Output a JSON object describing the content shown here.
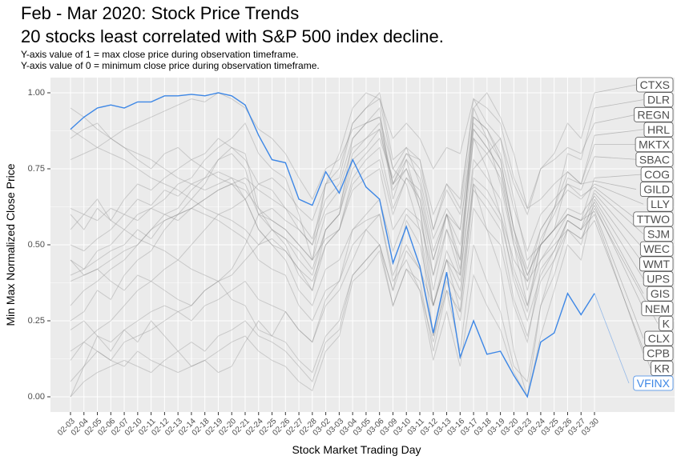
{
  "chart_data": {
    "type": "line",
    "title": "Feb - Mar 2020: Stock Price Trends",
    "title_line2": "20 stocks least correlated with S&P 500 index decline.",
    "subtitle_line1": "Y-axis value of 1 = max close price during observation timeframe.",
    "subtitle_line2": "Y-axis value of 0 = minimum close price during observation timeframe.",
    "xlabel": "Stock Market Trading Day",
    "ylabel": "Min Max Normalized Close Price",
    "ylim": [
      -0.05,
      1.05
    ],
    "yticks": [
      0.0,
      0.25,
      0.5,
      0.75,
      1.0
    ],
    "ytick_labels": [
      "0.00",
      "0.25",
      "0.50",
      "0.75",
      "1.00"
    ],
    "grid": true,
    "colors": {
      "panel": "#ebebeb",
      "grid": "#ffffff",
      "highlight": "#3d87e6",
      "gray_line": "#7f7f7f",
      "label_text": "#4d4d4d"
    },
    "categories": [
      "02-03",
      "02-04",
      "02-05",
      "02-06",
      "02-07",
      "02-10",
      "02-11",
      "02-12",
      "02-13",
      "02-14",
      "02-18",
      "02-19",
      "02-20",
      "02-21",
      "02-24",
      "02-25",
      "02-26",
      "02-27",
      "02-28",
      "03-02",
      "03-03",
      "03-04",
      "03-05",
      "03-06",
      "03-09",
      "03-10",
      "03-11",
      "03-12",
      "03-13",
      "03-16",
      "03-17",
      "03-18",
      "03-19",
      "03-20",
      "03-23",
      "03-24",
      "03-25",
      "03-26",
      "03-27",
      "03-30"
    ],
    "highlight_series": {
      "name": "VFINX",
      "values": [
        0.88,
        0.92,
        0.95,
        0.96,
        0.95,
        0.97,
        0.97,
        0.99,
        0.99,
        0.995,
        0.99,
        1.0,
        0.99,
        0.96,
        0.86,
        0.78,
        0.77,
        0.65,
        0.63,
        0.74,
        0.67,
        0.78,
        0.69,
        0.65,
        0.44,
        0.56,
        0.43,
        0.21,
        0.41,
        0.13,
        0.25,
        0.14,
        0.15,
        0.07,
        0.0,
        0.18,
        0.21,
        0.34,
        0.27,
        0.34
      ]
    },
    "series": [
      {
        "name": "CTXS",
        "values": [
          0.55,
          0.6,
          0.58,
          0.62,
          0.6,
          0.65,
          0.63,
          0.68,
          0.66,
          0.7,
          0.72,
          0.74,
          0.72,
          0.7,
          0.6,
          0.58,
          0.55,
          0.5,
          0.45,
          0.6,
          0.62,
          0.8,
          0.85,
          0.9,
          0.7,
          0.8,
          0.75,
          0.55,
          0.7,
          0.62,
          0.98,
          0.9,
          0.85,
          0.7,
          0.6,
          0.75,
          0.8,
          0.9,
          0.85,
          1.0
        ]
      },
      {
        "name": "DLR",
        "values": [
          0.12,
          0.18,
          0.22,
          0.25,
          0.3,
          0.35,
          0.38,
          0.42,
          0.45,
          0.5,
          0.55,
          0.6,
          0.62,
          0.65,
          0.7,
          0.72,
          0.68,
          0.62,
          0.58,
          0.7,
          0.75,
          0.9,
          0.95,
          1.0,
          0.78,
          0.82,
          0.7,
          0.48,
          0.6,
          0.42,
          0.85,
          0.75,
          0.6,
          0.45,
          0.38,
          0.55,
          0.62,
          0.8,
          0.78,
          0.95
        ]
      },
      {
        "name": "REGN",
        "values": [
          0.05,
          0.1,
          0.15,
          0.12,
          0.18,
          0.2,
          0.22,
          0.25,
          0.28,
          0.3,
          0.35,
          0.38,
          0.4,
          0.45,
          0.5,
          0.55,
          0.52,
          0.48,
          0.42,
          0.55,
          0.6,
          0.75,
          0.8,
          0.85,
          0.72,
          0.8,
          0.78,
          0.6,
          0.7,
          0.65,
          0.95,
          1.0,
          0.92,
          0.8,
          0.62,
          0.75,
          0.78,
          0.82,
          0.8,
          0.9
        ]
      },
      {
        "name": "HRL",
        "values": [
          0.62,
          0.6,
          0.65,
          0.58,
          0.55,
          0.6,
          0.62,
          0.6,
          0.58,
          0.62,
          0.6,
          0.58,
          0.55,
          0.52,
          0.45,
          0.42,
          0.4,
          0.3,
          0.25,
          0.35,
          0.38,
          0.5,
          0.55,
          0.6,
          0.4,
          0.5,
          0.42,
          0.3,
          0.45,
          0.35,
          0.7,
          0.65,
          0.58,
          0.4,
          0.28,
          0.5,
          0.55,
          0.72,
          0.7,
          0.86
        ]
      },
      {
        "name": "MKTX",
        "values": [
          0.25,
          0.28,
          0.35,
          0.32,
          0.4,
          0.45,
          0.48,
          0.55,
          0.6,
          0.65,
          0.7,
          0.78,
          0.82,
          0.8,
          0.62,
          0.55,
          0.5,
          0.4,
          0.35,
          0.55,
          0.6,
          0.85,
          0.9,
          0.95,
          0.65,
          0.78,
          0.62,
          0.35,
          0.55,
          0.4,
          0.95,
          0.85,
          0.7,
          0.5,
          0.3,
          0.5,
          0.62,
          0.74,
          0.7,
          0.83
        ]
      },
      {
        "name": "SBAC",
        "values": [
          0.3,
          0.35,
          0.38,
          0.42,
          0.45,
          0.5,
          0.55,
          0.6,
          0.62,
          0.68,
          0.72,
          0.78,
          0.8,
          0.75,
          0.6,
          0.55,
          0.52,
          0.45,
          0.4,
          0.55,
          0.6,
          0.78,
          0.82,
          0.88,
          0.68,
          0.75,
          0.65,
          0.4,
          0.6,
          0.45,
          0.92,
          0.88,
          0.78,
          0.55,
          0.35,
          0.52,
          0.6,
          0.7,
          0.68,
          0.79
        ]
      },
      {
        "name": "COG",
        "values": [
          0.0,
          0.1,
          0.2,
          0.15,
          0.22,
          0.18,
          0.25,
          0.2,
          0.15,
          0.1,
          0.12,
          0.08,
          0.1,
          0.18,
          0.25,
          0.2,
          0.28,
          0.22,
          0.18,
          0.3,
          0.35,
          0.45,
          0.55,
          0.5,
          0.35,
          0.58,
          0.5,
          0.3,
          0.45,
          0.4,
          0.75,
          0.8,
          0.85,
          0.65,
          0.45,
          0.5,
          0.55,
          0.6,
          0.58,
          0.72
        ]
      },
      {
        "name": "GILD",
        "values": [
          0.45,
          0.42,
          0.48,
          0.5,
          0.55,
          0.52,
          0.5,
          0.48,
          0.45,
          0.42,
          0.4,
          0.38,
          0.42,
          0.5,
          0.6,
          0.62,
          0.58,
          0.55,
          0.5,
          0.7,
          0.8,
          0.95,
          1.0,
          0.98,
          0.85,
          0.9,
          0.85,
          0.75,
          0.82,
          0.8,
          0.98,
          0.95,
          0.9,
          0.72,
          0.62,
          0.65,
          0.7,
          0.74,
          0.7,
          0.71
        ]
      },
      {
        "name": "LLY",
        "values": [
          0.6,
          0.55,
          0.62,
          0.58,
          0.65,
          0.7,
          0.68,
          0.72,
          0.75,
          0.78,
          0.8,
          0.85,
          0.82,
          0.78,
          0.7,
          0.68,
          0.62,
          0.55,
          0.5,
          0.62,
          0.68,
          0.82,
          0.85,
          0.88,
          0.7,
          0.78,
          0.72,
          0.52,
          0.62,
          0.55,
          0.88,
          0.82,
          0.75,
          0.55,
          0.42,
          0.55,
          0.62,
          0.68,
          0.65,
          0.7
        ]
      },
      {
        "name": "TTWO",
        "values": [
          0.4,
          0.42,
          0.45,
          0.48,
          0.5,
          0.55,
          0.52,
          0.58,
          0.6,
          0.62,
          0.65,
          0.68,
          0.7,
          0.72,
          0.68,
          0.65,
          0.62,
          0.58,
          0.52,
          0.65,
          0.7,
          0.85,
          0.9,
          0.92,
          0.75,
          0.82,
          0.78,
          0.55,
          0.68,
          0.6,
          0.92,
          0.88,
          0.8,
          0.62,
          0.48,
          0.6,
          0.65,
          0.7,
          0.66,
          0.69
        ]
      },
      {
        "name": "SJM",
        "values": [
          0.45,
          0.4,
          0.42,
          0.38,
          0.35,
          0.4,
          0.38,
          0.35,
          0.32,
          0.3,
          0.35,
          0.38,
          0.32,
          0.3,
          0.22,
          0.2,
          0.18,
          0.12,
          0.08,
          0.2,
          0.25,
          0.4,
          0.45,
          0.5,
          0.3,
          0.42,
          0.35,
          0.18,
          0.38,
          0.25,
          0.62,
          0.55,
          0.5,
          0.3,
          0.18,
          0.42,
          0.48,
          0.58,
          0.55,
          0.68
        ]
      },
      {
        "name": "WEC",
        "values": [
          0.78,
          0.8,
          0.82,
          0.85,
          0.88,
          0.9,
          0.92,
          0.94,
          0.96,
          0.98,
          0.97,
          1.0,
          0.98,
          0.95,
          0.88,
          0.85,
          0.8,
          0.72,
          0.65,
          0.75,
          0.78,
          0.88,
          0.9,
          0.92,
          0.7,
          0.75,
          0.62,
          0.3,
          0.45,
          0.28,
          0.7,
          0.55,
          0.42,
          0.15,
          0.0,
          0.3,
          0.4,
          0.55,
          0.5,
          0.67
        ]
      },
      {
        "name": "WMT",
        "values": [
          0.38,
          0.4,
          0.42,
          0.45,
          0.48,
          0.5,
          0.55,
          0.58,
          0.6,
          0.62,
          0.65,
          0.68,
          0.7,
          0.65,
          0.55,
          0.5,
          0.48,
          0.42,
          0.35,
          0.5,
          0.55,
          0.7,
          0.75,
          0.78,
          0.6,
          0.72,
          0.65,
          0.45,
          0.6,
          0.5,
          0.85,
          0.8,
          0.72,
          0.52,
          0.4,
          0.5,
          0.55,
          0.62,
          0.6,
          0.66
        ]
      },
      {
        "name": "UPS",
        "values": [
          0.95,
          0.92,
          0.88,
          0.85,
          0.82,
          0.8,
          0.78,
          0.75,
          0.72,
          0.7,
          0.68,
          0.7,
          0.72,
          0.65,
          0.55,
          0.5,
          0.45,
          0.35,
          0.3,
          0.42,
          0.45,
          0.55,
          0.58,
          0.6,
          0.38,
          0.45,
          0.35,
          0.12,
          0.28,
          0.1,
          0.4,
          0.3,
          0.22,
          0.08,
          0.0,
          0.2,
          0.35,
          0.5,
          0.45,
          0.65
        ]
      },
      {
        "name": "GIS",
        "values": [
          0.22,
          0.25,
          0.2,
          0.18,
          0.22,
          0.25,
          0.28,
          0.3,
          0.28,
          0.25,
          0.3,
          0.32,
          0.35,
          0.38,
          0.32,
          0.3,
          0.28,
          0.22,
          0.18,
          0.32,
          0.38,
          0.55,
          0.6,
          0.65,
          0.48,
          0.6,
          0.55,
          0.3,
          0.48,
          0.38,
          0.78,
          0.72,
          0.65,
          0.42,
          0.3,
          0.45,
          0.52,
          0.6,
          0.58,
          0.64
        ]
      },
      {
        "name": "NEM",
        "values": [
          0.5,
          0.48,
          0.52,
          0.55,
          0.6,
          0.58,
          0.62,
          0.65,
          0.7,
          0.72,
          0.78,
          0.82,
          0.85,
          0.9,
          0.8,
          0.75,
          0.72,
          0.6,
          0.45,
          0.7,
          0.72,
          0.9,
          0.95,
          0.98,
          0.75,
          0.7,
          0.55,
          0.2,
          0.35,
          0.15,
          0.5,
          0.38,
          0.28,
          0.1,
          0.05,
          0.3,
          0.45,
          0.58,
          0.55,
          0.63
        ]
      },
      {
        "name": "K",
        "values": [
          0.15,
          0.18,
          0.15,
          0.12,
          0.1,
          0.15,
          0.12,
          0.1,
          0.08,
          0.1,
          0.12,
          0.15,
          0.18,
          0.2,
          0.15,
          0.12,
          0.1,
          0.05,
          0.02,
          0.15,
          0.2,
          0.38,
          0.42,
          0.48,
          0.3,
          0.42,
          0.38,
          0.15,
          0.35,
          0.28,
          0.68,
          0.62,
          0.55,
          0.32,
          0.2,
          0.38,
          0.45,
          0.55,
          0.52,
          0.62
        ]
      },
      {
        "name": "CLX",
        "values": [
          0.88,
          0.85,
          0.82,
          0.8,
          0.78,
          0.75,
          0.72,
          0.7,
          0.68,
          0.65,
          0.62,
          0.6,
          0.58,
          0.55,
          0.5,
          0.52,
          0.48,
          0.42,
          0.38,
          0.5,
          0.55,
          0.72,
          0.78,
          0.82,
          0.62,
          0.72,
          0.68,
          0.45,
          0.6,
          0.55,
          0.9,
          0.85,
          0.78,
          0.55,
          0.4,
          0.5,
          0.55,
          0.6,
          0.58,
          0.61
        ]
      },
      {
        "name": "CPB",
        "values": [
          0.0,
          0.05,
          0.08,
          0.1,
          0.12,
          0.1,
          0.08,
          0.12,
          0.15,
          0.18,
          0.15,
          0.2,
          0.22,
          0.25,
          0.2,
          0.18,
          0.15,
          0.1,
          0.05,
          0.18,
          0.22,
          0.4,
          0.45,
          0.5,
          0.35,
          0.48,
          0.42,
          0.2,
          0.4,
          0.32,
          0.72,
          0.68,
          0.6,
          0.38,
          0.25,
          0.4,
          0.48,
          0.58,
          0.55,
          0.6
        ]
      },
      {
        "name": "KR",
        "values": [
          0.85,
          0.88,
          0.9,
          0.85,
          0.82,
          0.78,
          0.75,
          0.8,
          0.82,
          0.78,
          0.75,
          0.72,
          0.7,
          0.68,
          0.62,
          0.58,
          0.55,
          0.5,
          0.45,
          0.52,
          0.55,
          0.68,
          0.72,
          0.75,
          0.55,
          0.62,
          0.58,
          0.4,
          0.55,
          0.45,
          0.88,
          0.82,
          0.75,
          0.5,
          0.38,
          0.45,
          0.5,
          0.55,
          0.52,
          0.58
        ]
      }
    ],
    "legend_labels": [
      "CTXS",
      "DLR",
      "REGN",
      "HRL",
      "MKTX",
      "SBAC",
      "COG",
      "GILD",
      "LLY",
      "TTWO",
      "SJM",
      "WEC",
      "WMT",
      "UPS",
      "GIS",
      "NEM",
      "K",
      "CLX",
      "CPB",
      "KR",
      "VFINX"
    ]
  }
}
